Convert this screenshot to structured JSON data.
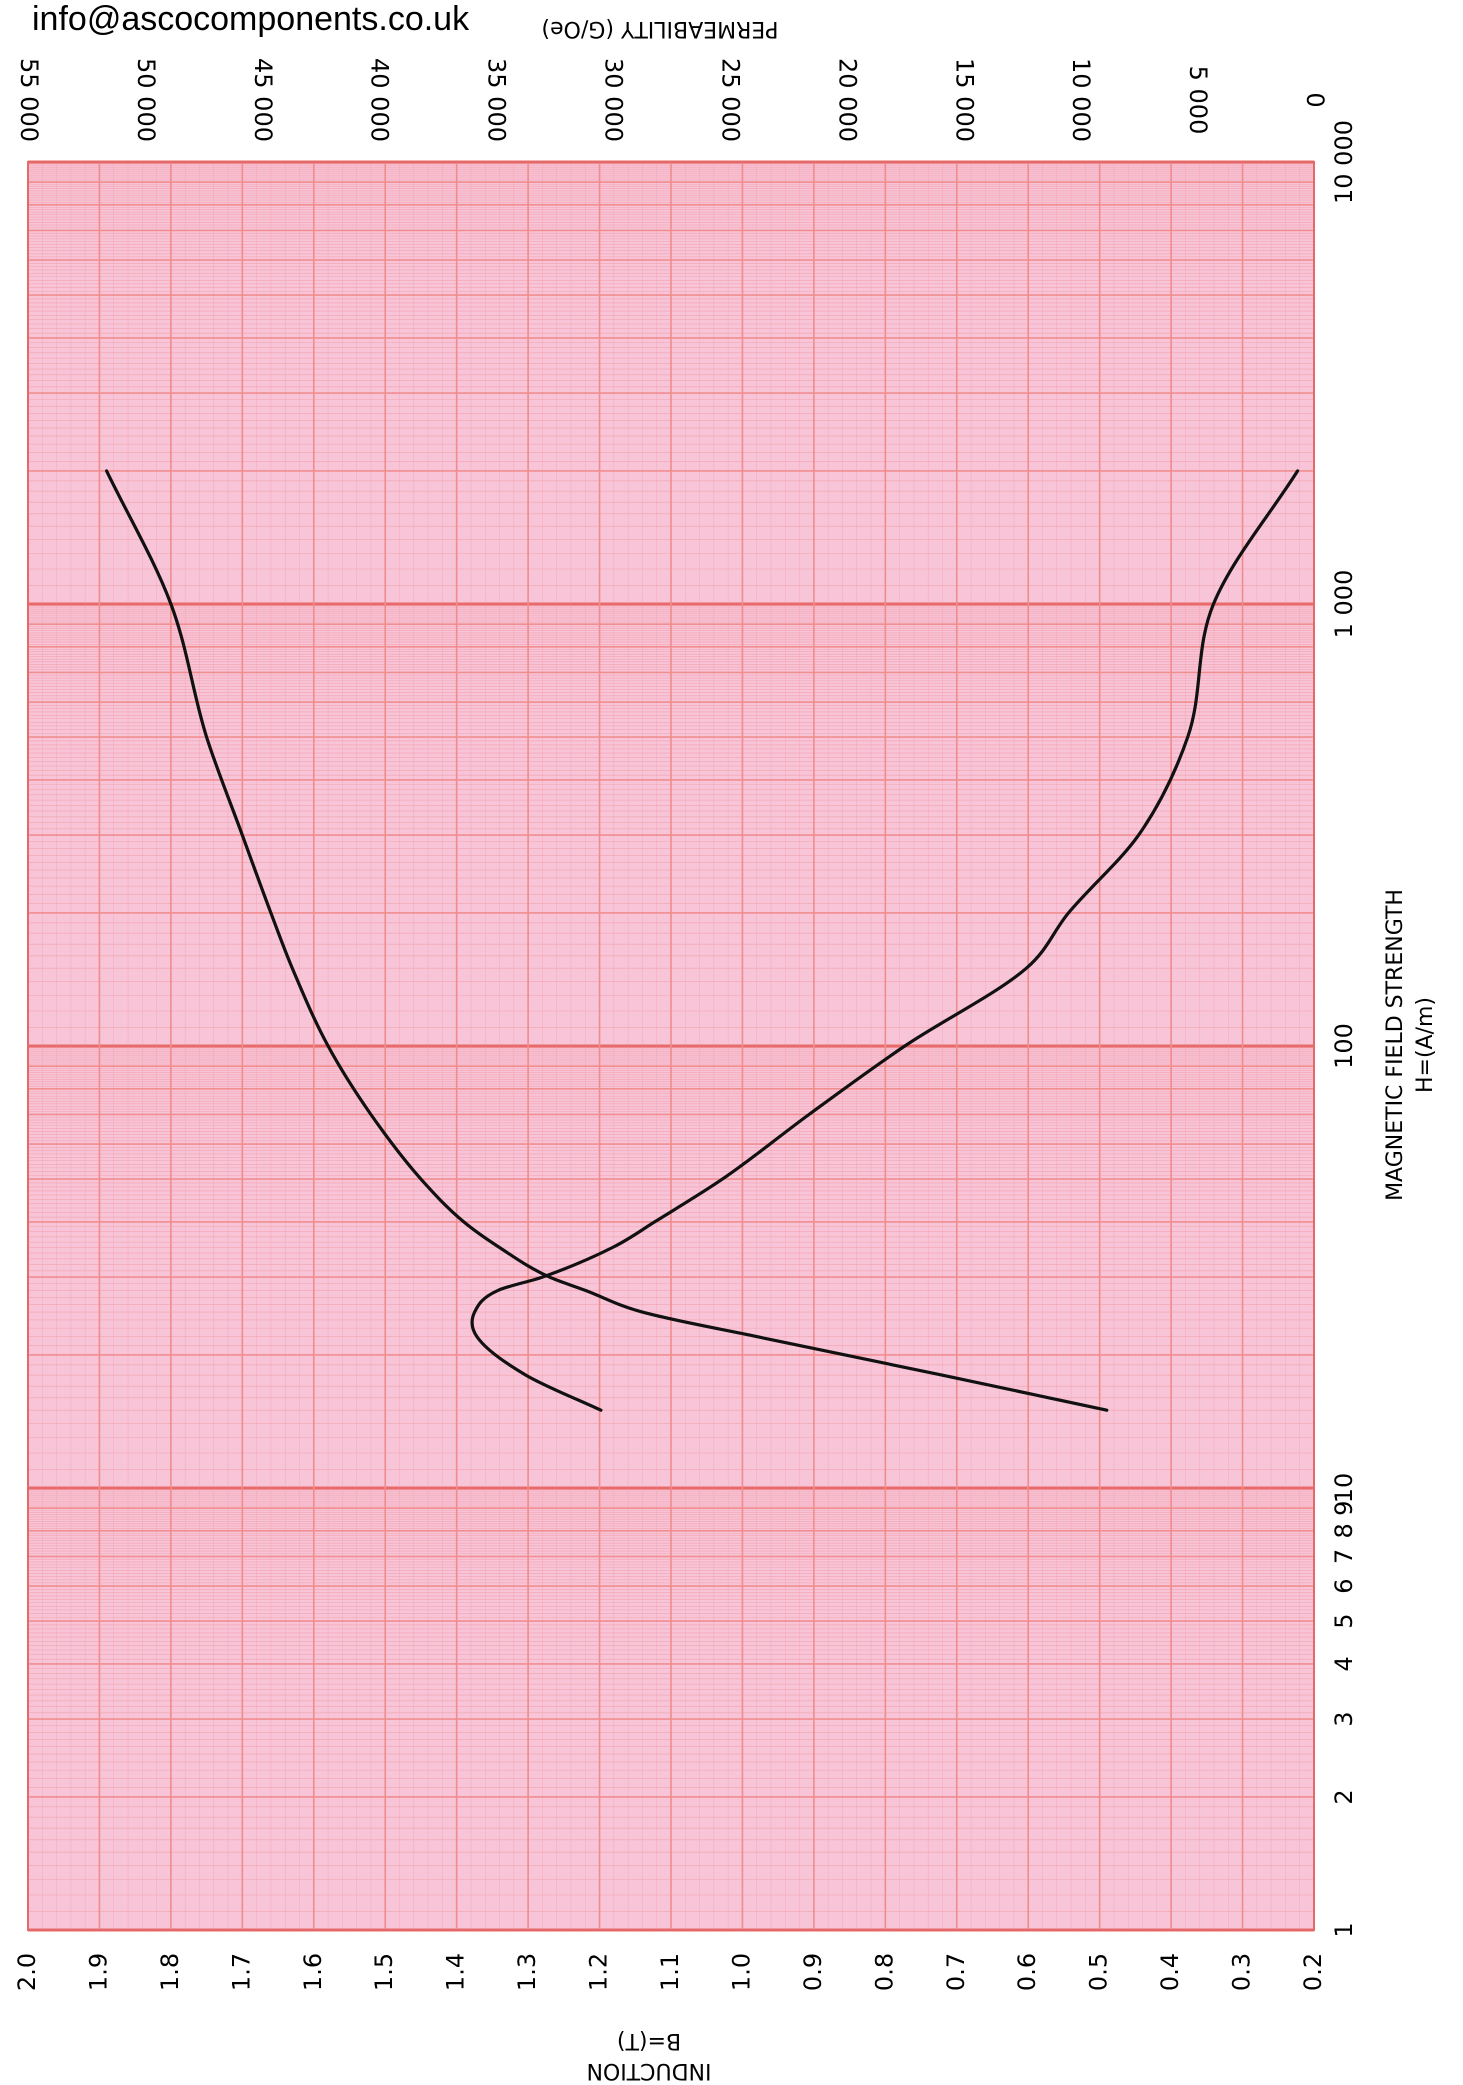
{
  "email": "info@ascocomponents.co.uk",
  "chart_data": {
    "type": "line",
    "x_axis": {
      "label": "MAGNETIC FIELD STRENGTH",
      "unit_label": "H=(A/m)",
      "scale": "log",
      "range": [
        1,
        10000
      ],
      "tick_labels": [
        {
          "value": 1,
          "label": "1"
        },
        {
          "value": 2,
          "label": "2"
        },
        {
          "value": 3,
          "label": "3"
        },
        {
          "value": 4,
          "label": "4"
        },
        {
          "value": 5,
          "label": "5"
        },
        {
          "value": 6,
          "label": "6"
        },
        {
          "value": 7,
          "label": "7"
        },
        {
          "value": 8,
          "label": "8"
        },
        {
          "value": 9,
          "label": "9"
        },
        {
          "value": 10,
          "label": "10"
        },
        {
          "value": 100,
          "label": "100"
        },
        {
          "value": 1000,
          "label": "1 000"
        },
        {
          "value": 10000,
          "label": "10 000"
        }
      ]
    },
    "induction_axis": {
      "label": "INDUCTION",
      "unit_label": "B=(T)",
      "range": [
        0.2,
        2.0
      ],
      "ticks": [
        2.0,
        1.9,
        1.8,
        1.7,
        1.6,
        1.5,
        1.4,
        1.3,
        1.2,
        1.1,
        1.0,
        0.9,
        0.8,
        0.7,
        0.6,
        0.5,
        0.4,
        0.3,
        0.2
      ]
    },
    "permeability_axis": {
      "label": "PERMEABILITY",
      "unit_label": "(G/Oe)",
      "range": [
        0,
        55000
      ],
      "ticks": [
        55000,
        50000,
        45000,
        40000,
        35000,
        30000,
        25000,
        20000,
        15000,
        10000,
        5000,
        0
      ],
      "tick_labels": [
        "55 000",
        "50 000",
        "45 000",
        "40 000",
        "35 000",
        "30 000",
        "25 000",
        "20 000",
        "15 000",
        "10 000",
        "5 000",
        "0"
      ]
    },
    "grid": true,
    "colors": {
      "background": "#f7c4d8",
      "grid": "#f08c8c",
      "curve": "#111111"
    },
    "series": [
      {
        "axis": "induction",
        "points": [
          [
            15,
            0.49
          ],
          [
            18,
            0.72
          ],
          [
            22,
            0.98
          ],
          [
            25,
            1.14
          ],
          [
            28,
            1.22
          ],
          [
            30,
            1.27
          ],
          [
            35,
            1.34
          ],
          [
            40,
            1.39
          ],
          [
            50,
            1.45
          ],
          [
            70,
            1.52
          ],
          [
            100,
            1.58
          ],
          [
            150,
            1.63
          ],
          [
            200,
            1.66
          ],
          [
            300,
            1.7
          ],
          [
            500,
            1.75
          ],
          [
            1000,
            1.8
          ],
          [
            2000,
            1.89
          ]
        ]
      },
      {
        "axis": "permeability",
        "points": [
          [
            15,
            30500
          ],
          [
            18,
            33700
          ],
          [
            22,
            35800
          ],
          [
            25,
            35900
          ],
          [
            28,
            34900
          ],
          [
            30,
            33000
          ],
          [
            35,
            30000
          ],
          [
            40,
            28200
          ],
          [
            50,
            25300
          ],
          [
            70,
            21600
          ],
          [
            100,
            17500
          ],
          [
            150,
            12300
          ],
          [
            200,
            10500
          ],
          [
            300,
            7500
          ],
          [
            500,
            5400
          ],
          [
            1000,
            4300
          ],
          [
            2000,
            700
          ]
        ]
      }
    ]
  }
}
